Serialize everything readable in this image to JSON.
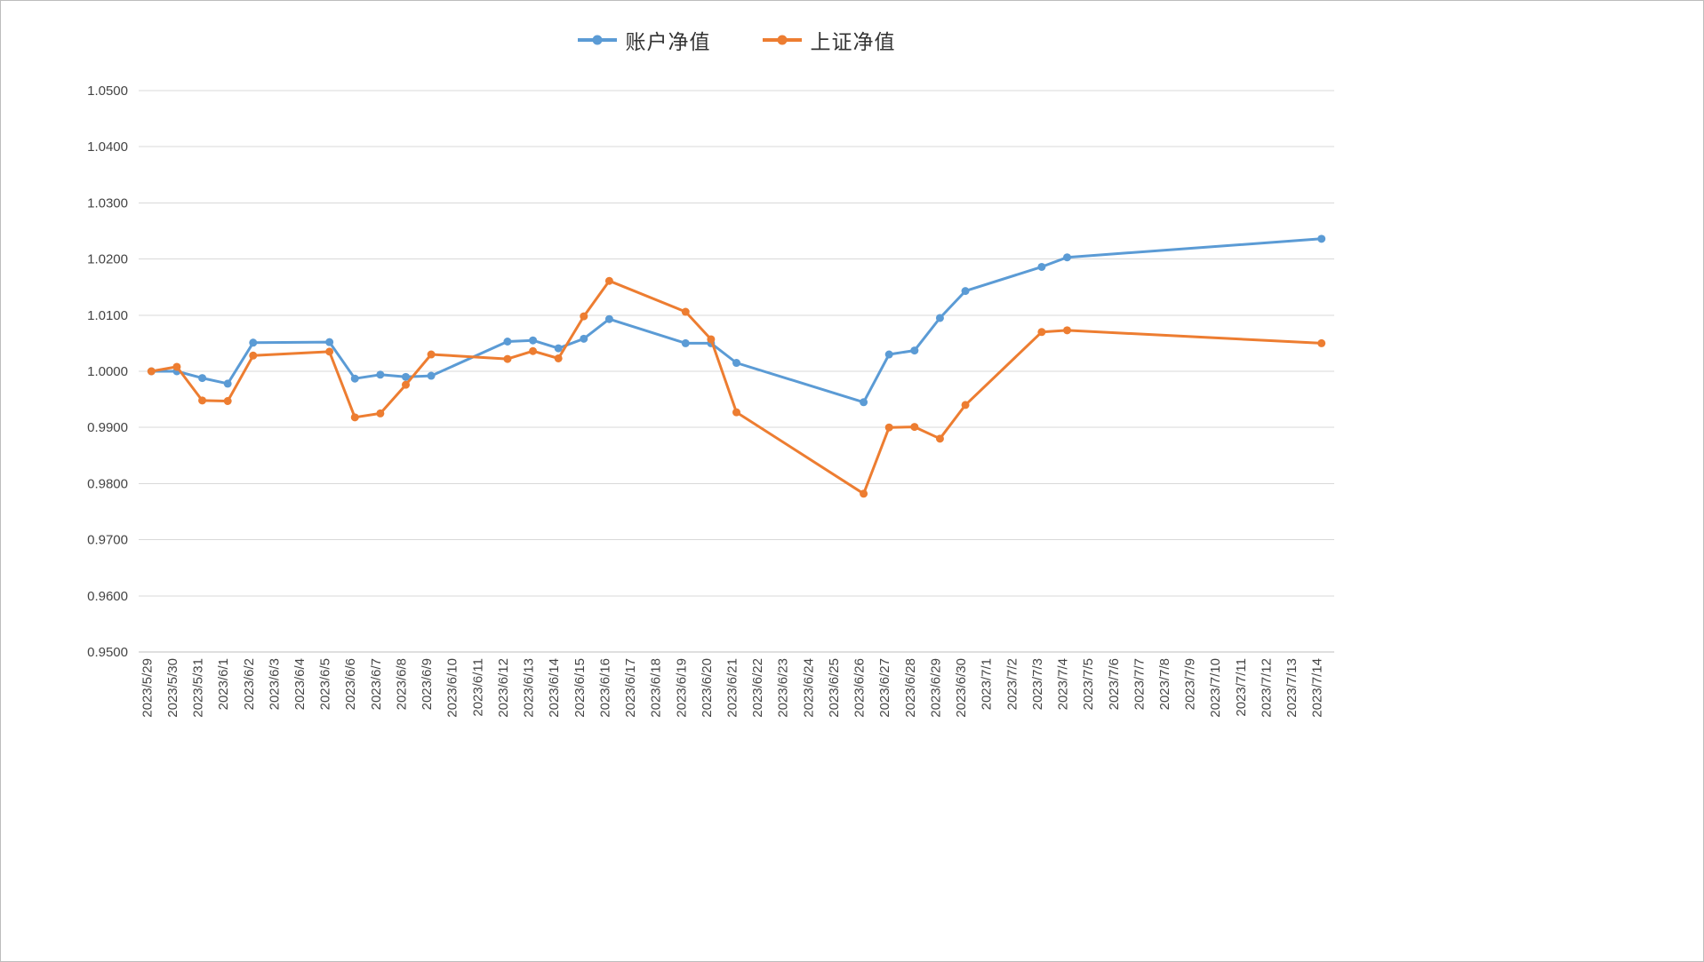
{
  "window": {
    "background": "#ffffff",
    "border_color": "#bdbdbd"
  },
  "axis": {
    "label_color": "#444444",
    "gridline_color": "#d9d9d9",
    "axisline_color": "#bfbfbf",
    "y_labels": [
      "1.0500",
      "1.0400",
      "1.0300",
      "1.0200",
      "1.0100",
      "1.0000",
      "0.9900",
      "0.9800",
      "0.9700",
      "0.9600",
      "0.9500"
    ]
  },
  "chart_data": {
    "type": "line",
    "title": "",
    "xlabel": "",
    "ylabel": "",
    "ylim": [
      0.95,
      1.05
    ],
    "ytick_step": 0.01,
    "ytick_decimals": 4,
    "grid": true,
    "legend_position": "top-center",
    "categories": [
      "2023/5/29",
      "2023/5/30",
      "2023/5/31",
      "2023/6/1",
      "2023/6/2",
      "2023/6/3",
      "2023/6/4",
      "2023/6/5",
      "2023/6/6",
      "2023/6/7",
      "2023/6/8",
      "2023/6/9",
      "2023/6/10",
      "2023/6/11",
      "2023/6/12",
      "2023/6/13",
      "2023/6/14",
      "2023/6/15",
      "2023/6/16",
      "2023/6/17",
      "2023/6/18",
      "2023/6/19",
      "2023/6/20",
      "2023/6/21",
      "2023/6/22",
      "2023/6/23",
      "2023/6/24",
      "2023/6/25",
      "2023/6/26",
      "2023/6/27",
      "2023/6/28",
      "2023/6/29",
      "2023/6/30",
      "2023/7/1",
      "2023/7/2",
      "2023/7/3",
      "2023/7/4",
      "2023/7/5",
      "2023/7/6",
      "2023/7/7",
      "2023/7/8",
      "2023/7/9",
      "2023/7/10",
      "2023/7/11",
      "2023/7/12",
      "2023/7/13",
      "2023/7/14"
    ],
    "series": [
      {
        "name": "账户净值",
        "color": "#5B9BD5",
        "points": [
          [
            0,
            1.0
          ],
          [
            1,
            1.0
          ],
          [
            2,
            0.9988
          ],
          [
            3,
            0.9978
          ],
          [
            4,
            1.0051
          ],
          [
            7,
            1.0052
          ],
          [
            8,
            0.9987
          ],
          [
            9,
            0.9994
          ],
          [
            10,
            0.999
          ],
          [
            11,
            0.9992
          ],
          [
            14,
            1.0053
          ],
          [
            15,
            1.0055
          ],
          [
            16,
            1.0041
          ],
          [
            17,
            1.0058
          ],
          [
            18,
            1.0093
          ],
          [
            21,
            1.005
          ],
          [
            22,
            1.005
          ],
          [
            23,
            1.0015
          ],
          [
            28,
            0.9945
          ],
          [
            29,
            1.003
          ],
          [
            30,
            1.0037
          ],
          [
            31,
            1.0095
          ],
          [
            32,
            1.0143
          ],
          [
            35,
            1.0186
          ],
          [
            36,
            1.0203
          ],
          [
            46,
            1.0236
          ]
        ]
      },
      {
        "name": "上证净值",
        "color": "#ED7D31",
        "points": [
          [
            0,
            1.0
          ],
          [
            1,
            1.0008
          ],
          [
            2,
            0.9948
          ],
          [
            3,
            0.9947
          ],
          [
            4,
            1.0028
          ],
          [
            7,
            1.0035
          ],
          [
            8,
            0.9918
          ],
          [
            9,
            0.9925
          ],
          [
            10,
            0.9976
          ],
          [
            11,
            1.003
          ],
          [
            14,
            1.0022
          ],
          [
            15,
            1.0036
          ],
          [
            16,
            1.0023
          ],
          [
            17,
            1.0098
          ],
          [
            18,
            1.0161
          ],
          [
            21,
            1.0106
          ],
          [
            22,
            1.0057
          ],
          [
            23,
            0.9927
          ],
          [
            28,
            0.9782
          ],
          [
            29,
            0.99
          ],
          [
            30,
            0.9901
          ],
          [
            31,
            0.988
          ],
          [
            32,
            0.994
          ],
          [
            35,
            1.007
          ],
          [
            36,
            1.0073
          ],
          [
            46,
            1.005
          ]
        ]
      }
    ]
  }
}
